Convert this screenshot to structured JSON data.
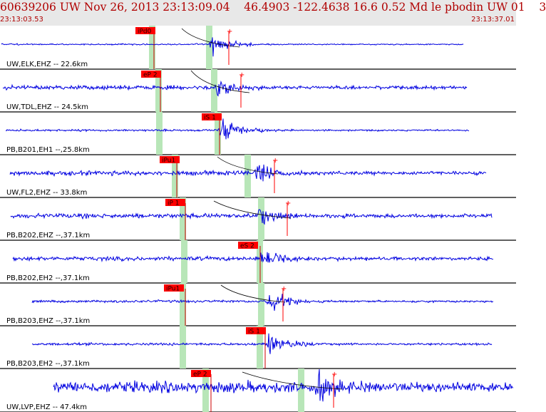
{
  "header": {
    "title": "60639206 UW Nov 26, 2013 23:13:09.04    46.4903 -122.4638 16.6 0.52 Md le pbodin UW 01    3",
    "start_time": "23:13:03.53",
    "end_time": "23:13:37.01"
  },
  "colors": {
    "trace": "#0000e0",
    "pick_label_bg": "#ff0000",
    "pick_window": "#b8e6b8",
    "header_bg": "#e8e8e8",
    "header_text": "#b00000"
  },
  "traces": [
    {
      "label": "UW,ELK,EHZ -- 22.6km",
      "pick": "iPd0"
    },
    {
      "label": "UW,TDL,EHZ -- 24.5km",
      "pick": "eP 2"
    },
    {
      "label": "PB,B201,EH1 --,25.8km",
      "pick": "iS 1"
    },
    {
      "label": "UW,FL2,EHZ -- 33.8km",
      "pick": "iPu1"
    },
    {
      "label": "PB,B202,EHZ --,37.1km",
      "pick": "iP 1"
    },
    {
      "label": "PB,B202,EH2 --,37.1km",
      "pick": "eS 2"
    },
    {
      "label": "PB,B203,EHZ --,37.1km",
      "pick": "iPu1"
    },
    {
      "label": "PB,B203,EH2 --,37.1km",
      "pick": "iS 1"
    },
    {
      "label": "UW,LVP,EHZ -- 47.4km",
      "pick": "eP 2"
    }
  ]
}
